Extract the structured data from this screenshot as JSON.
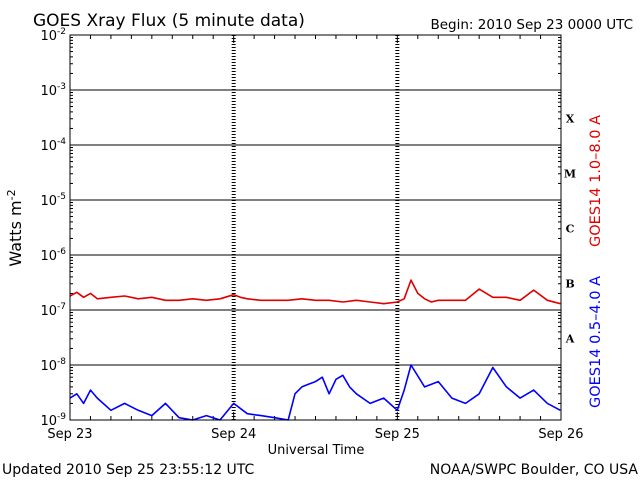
{
  "chart_data": {
    "type": "line",
    "title": "GOES Xray Flux (5 minute data)",
    "begin_label": "Begin:  2010 Sep 23 0000 UTC",
    "xlabel": "Universal Time",
    "ylabel": "Watts m",
    "ylabel_sup": "-2",
    "yscale": "log",
    "ylim": [
      1e-09,
      0.01
    ],
    "y_ticks": [
      {
        "exp": "-2",
        "value": 0.01
      },
      {
        "exp": "-3",
        "value": 0.001
      },
      {
        "exp": "-4",
        "value": 0.0001
      },
      {
        "exp": "-5",
        "value": 1e-05
      },
      {
        "exp": "-6",
        "value": 1e-06
      },
      {
        "exp": "-7",
        "value": 1e-07
      },
      {
        "exp": "-8",
        "value": 1e-08
      },
      {
        "exp": "-9",
        "value": 1e-09
      }
    ],
    "xlim": [
      "2010-09-23 00:00",
      "2010-09-26 00:00"
    ],
    "x_ticks": [
      "Sep 23",
      "Sep 24",
      "Sep 25",
      "Sep 26"
    ],
    "flare_classes": [
      "X",
      "M",
      "C",
      "B",
      "A"
    ],
    "grid": "horizontal lines at each decade",
    "series": [
      {
        "name": "GOES14 1.0–8.0 A",
        "color": "#e00000",
        "x": [
          "2010-09-23 00:00",
          "2010-09-23 01:00",
          "2010-09-23 02:00",
          "2010-09-23 03:00",
          "2010-09-23 04:00",
          "2010-09-23 06:00",
          "2010-09-23 08:00",
          "2010-09-23 10:00",
          "2010-09-23 12:00",
          "2010-09-23 14:00",
          "2010-09-23 16:00",
          "2010-09-23 18:00",
          "2010-09-23 20:00",
          "2010-09-23 22:00",
          "2010-09-24 00:00",
          "2010-09-24 01:00",
          "2010-09-24 02:00",
          "2010-09-24 04:00",
          "2010-09-24 06:00",
          "2010-09-24 08:00",
          "2010-09-24 10:00",
          "2010-09-24 12:00",
          "2010-09-24 14:00",
          "2010-09-24 16:00",
          "2010-09-24 18:00",
          "2010-09-24 20:00",
          "2010-09-24 22:00",
          "2010-09-25 00:00",
          "2010-09-25 01:00",
          "2010-09-25 02:00",
          "2010-09-25 03:00",
          "2010-09-25 04:00",
          "2010-09-25 05:00",
          "2010-09-25 06:00",
          "2010-09-25 08:00",
          "2010-09-25 10:00",
          "2010-09-25 12:00",
          "2010-09-25 14:00",
          "2010-09-25 16:00",
          "2010-09-25 18:00",
          "2010-09-25 20:00",
          "2010-09-25 22:00",
          "2010-09-25 23:55"
        ],
        "values": [
          1.8e-07,
          2.1e-07,
          1.7e-07,
          2e-07,
          1.6e-07,
          1.7e-07,
          1.8e-07,
          1.6e-07,
          1.7e-07,
          1.5e-07,
          1.5e-07,
          1.6e-07,
          1.5e-07,
          1.6e-07,
          1.9e-07,
          1.7e-07,
          1.6e-07,
          1.5e-07,
          1.5e-07,
          1.5e-07,
          1.6e-07,
          1.5e-07,
          1.5e-07,
          1.4e-07,
          1.5e-07,
          1.4e-07,
          1.3e-07,
          1.4e-07,
          1.6e-07,
          3.5e-07,
          2e-07,
          1.6e-07,
          1.4e-07,
          1.5e-07,
          1.5e-07,
          1.5e-07,
          2.4e-07,
          1.7e-07,
          1.7e-07,
          1.5e-07,
          2.3e-07,
          1.5e-07,
          1.3e-07
        ]
      },
      {
        "name": "GOES14 0.5–4.0 A",
        "color": "#0000ff",
        "x": [
          "2010-09-23 00:00",
          "2010-09-23 01:00",
          "2010-09-23 02:00",
          "2010-09-23 03:00",
          "2010-09-23 04:00",
          "2010-09-23 06:00",
          "2010-09-23 08:00",
          "2010-09-23 10:00",
          "2010-09-23 12:00",
          "2010-09-23 14:00",
          "2010-09-23 16:00",
          "2010-09-23 18:00",
          "2010-09-23 20:00",
          "2010-09-23 22:00",
          "2010-09-24 00:00",
          "2010-09-24 02:00",
          "2010-09-24 04:00",
          "2010-09-24 06:00",
          "2010-09-24 08:00",
          "2010-09-24 09:00",
          "2010-09-24 10:00",
          "2010-09-24 11:00",
          "2010-09-24 12:00",
          "2010-09-24 13:00",
          "2010-09-24 14:00",
          "2010-09-24 15:00",
          "2010-09-24 16:00",
          "2010-09-24 17:00",
          "2010-09-24 18:00",
          "2010-09-24 20:00",
          "2010-09-24 22:00",
          "2010-09-25 00:00",
          "2010-09-25 01:00",
          "2010-09-25 02:00",
          "2010-09-25 04:00",
          "2010-09-25 06:00",
          "2010-09-25 08:00",
          "2010-09-25 10:00",
          "2010-09-25 12:00",
          "2010-09-25 14:00",
          "2010-09-25 16:00",
          "2010-09-25 18:00",
          "2010-09-25 20:00",
          "2010-09-25 22:00",
          "2010-09-25 23:55"
        ],
        "values": [
          2.5e-09,
          3e-09,
          2e-09,
          3.5e-09,
          2.5e-09,
          1.5e-09,
          2e-09,
          1.5e-09,
          1.2e-09,
          2e-09,
          1.1e-09,
          1e-09,
          1.2e-09,
          1e-09,
          2e-09,
          1.3e-09,
          1.2e-09,
          1.1e-09,
          1e-09,
          3e-09,
          4e-09,
          4.5e-09,
          5e-09,
          6e-09,
          3e-09,
          5.5e-09,
          6.5e-09,
          4e-09,
          3e-09,
          2e-09,
          2.5e-09,
          1.5e-09,
          3.5e-09,
          1e-08,
          4e-09,
          5e-09,
          2.5e-09,
          2e-09,
          3e-09,
          9e-09,
          4e-09,
          2.5e-09,
          3.5e-09,
          2e-09,
          1.5e-09
        ]
      }
    ]
  },
  "footer": {
    "updated": "Updated 2010 Sep 25 23:55:12 UTC",
    "source": "NOAA/SWPC Boulder, CO USA"
  }
}
